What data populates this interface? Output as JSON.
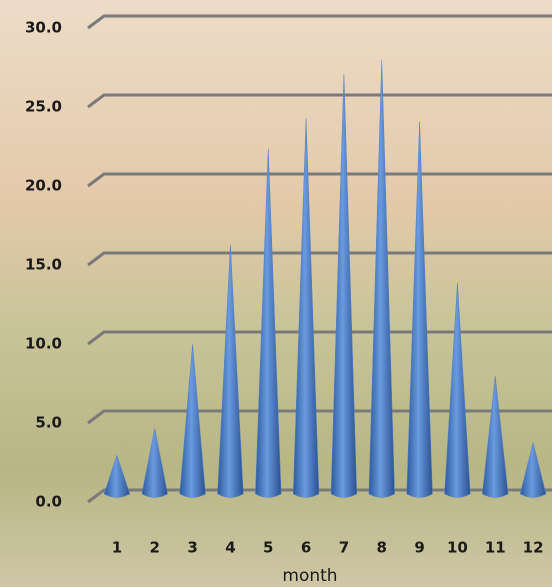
{
  "chart_data": {
    "type": "cone",
    "categories": [
      "1",
      "2",
      "3",
      "4",
      "5",
      "6",
      "7",
      "8",
      "9",
      "10",
      "11",
      "12"
    ],
    "values": [
      2.2,
      3.9,
      9.2,
      15.5,
      21.6,
      23.5,
      26.3,
      27.2,
      23.3,
      13.1,
      7.2,
      3.0
    ],
    "color": "#4f7fc4",
    "x_label": "month",
    "ylim": [
      0,
      30
    ],
    "yticks": [
      {
        "value": 0,
        "label": "0.0"
      },
      {
        "value": 5,
        "label": "5.0"
      },
      {
        "value": 10,
        "label": "10.0"
      },
      {
        "value": 15,
        "label": "15.0"
      },
      {
        "value": 20,
        "label": "20.0"
      },
      {
        "value": 25,
        "label": "25.0"
      },
      {
        "value": 30,
        "label": "30.0"
      }
    ],
    "grid": true
  }
}
